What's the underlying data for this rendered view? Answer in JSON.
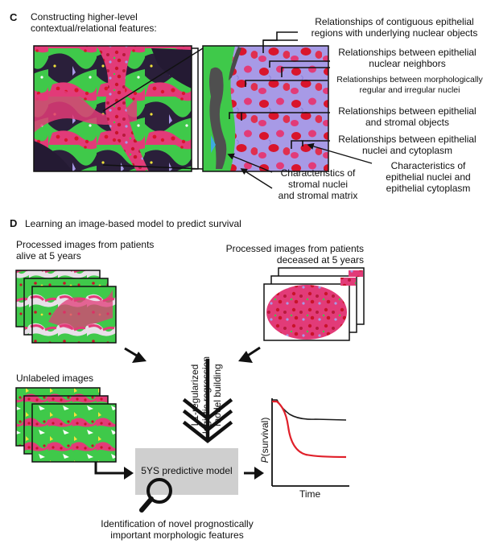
{
  "panelC": {
    "letter": "C",
    "title_line1": "Constructing higher-level",
    "title_line2": "contextual/relational features:",
    "labels": {
      "contig_1": "Relationships of contiguous epithelial",
      "contig_2": "regions with underlying nuclear objects",
      "epi_neighbors_1": "Relationships between epithelial",
      "epi_neighbors_2": "nuclear neighbors",
      "morph_1": "Relationships between morphologically",
      "morph_2": "regular and irregular nuclei",
      "epi_stromal_1": "Relationships between epithelial",
      "epi_stromal_2": "and stromal objects",
      "epi_cyto_1": "Relationships between epithelial",
      "epi_cyto_2": "nuclei and cytoplasm",
      "char_epi_1": "Characteristics of",
      "char_epi_2": "epithelial nuclei and",
      "char_epi_3": "epithelial cytoplasm",
      "char_stromal_1": "Characteristics of",
      "char_stromal_2": "stromal nuclei",
      "char_stromal_3": "and stromal matrix"
    }
  },
  "panelD": {
    "letter": "D",
    "title": "Learning an image-based model to predict survival",
    "alive_1": "Processed images from patients",
    "alive_2": "alive at 5 years",
    "deceased_1": "Processed images from patients",
    "deceased_2": "deceased at 5 years",
    "unlabeled": "Unlabeled images",
    "vertical_1": "L1-regularized",
    "vertical_2": "logistic regression",
    "vertical_3": "model building",
    "model_box": "5YS predictive model",
    "identification_1": "Identification of novel prognostically",
    "identification_2": "important morphologic features",
    "survival_ylabel_prefix": "P",
    "survival_ylabel_suffix": "(survival)",
    "survival_xlabel": "Time"
  },
  "colors": {
    "stroma_green": "#3fc94a",
    "epithelium_pink": "#e23b78",
    "nuclei_red": "#d9152c",
    "cytoplasm_lavender": "#a79ae6",
    "dark_background": "#241a33",
    "model_box_gray": "#cfcfcf",
    "survival_black": "#1a1a1a",
    "survival_red": "#e0202a"
  },
  "icons": [
    "magnifier-icon",
    "arrow-icon",
    "triple-chevron-arrow-icon"
  ]
}
